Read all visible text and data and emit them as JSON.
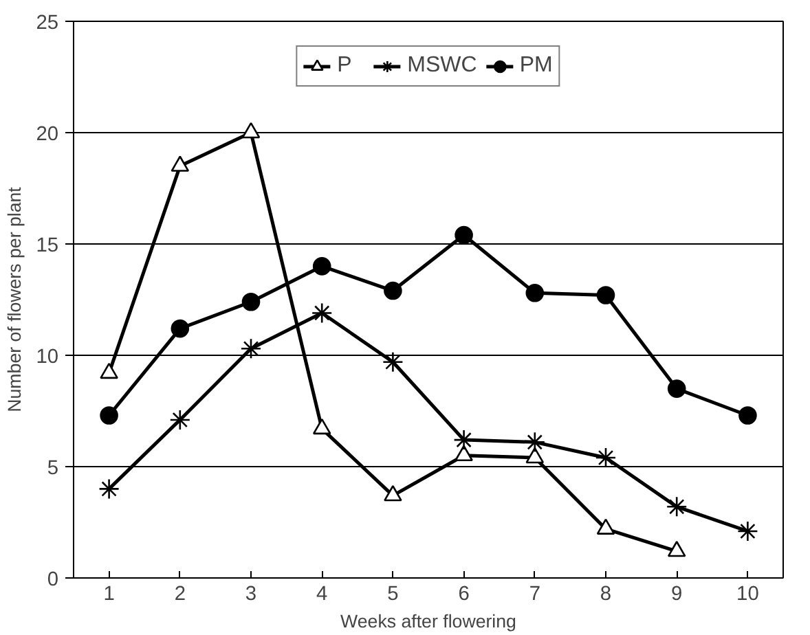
{
  "chart_data": {
    "type": "line",
    "xlabel": "Weeks after flowering",
    "ylabel": "Number of flowers per plant",
    "categories": [
      "1",
      "2",
      "3",
      "4",
      "5",
      "6",
      "7",
      "8",
      "9",
      "10"
    ],
    "series": [
      {
        "name": "P",
        "color": "#000000",
        "marker": "triangle",
        "values": [
          9.2,
          18.5,
          20,
          6.7,
          3.7,
          5.5,
          5.4,
          2.2,
          1.2,
          null
        ]
      },
      {
        "name": "MSWC",
        "color": "#000000",
        "marker": "cross",
        "values": [
          4,
          7.1,
          10.3,
          11.9,
          9.7,
          6.2,
          6.1,
          5.4,
          3.2,
          2.1
        ]
      },
      {
        "name": "PM",
        "color": "#000000",
        "marker": "circle",
        "values": [
          7.3,
          11.2,
          12.4,
          14,
          12.9,
          15.4,
          12.8,
          12.7,
          8.5,
          7.3
        ]
      }
    ],
    "ylim": [
      0,
      25
    ],
    "yticks": [
      0,
      5,
      10,
      15,
      20,
      25
    ],
    "grid": "y",
    "legend": "top",
    "line_style": "solid"
  }
}
